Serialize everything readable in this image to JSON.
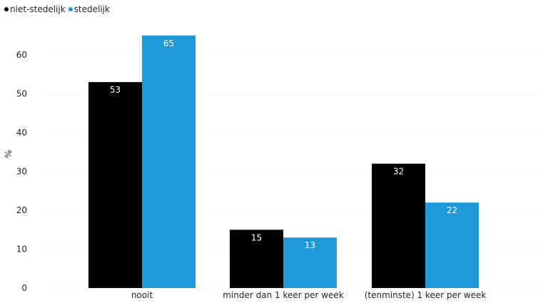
{
  "chart_data": {
    "type": "bar",
    "categories": [
      "nooit",
      "minder dan 1 keer per week",
      "(tenminste) 1 keer per week"
    ],
    "series": [
      {
        "name": "niet-stedelijk",
        "values": [
          53,
          15,
          32
        ],
        "color": "#000000"
      },
      {
        "name": "stedelijk",
        "values": [
          65,
          13,
          22
        ],
        "color": "#1f9ad9"
      }
    ],
    "ylabel": "%",
    "ylim": [
      0,
      70
    ],
    "yticks": [
      0,
      10,
      20,
      30,
      40,
      50,
      60
    ],
    "grid": true,
    "legend_position": "top-left",
    "data_labels": true
  }
}
